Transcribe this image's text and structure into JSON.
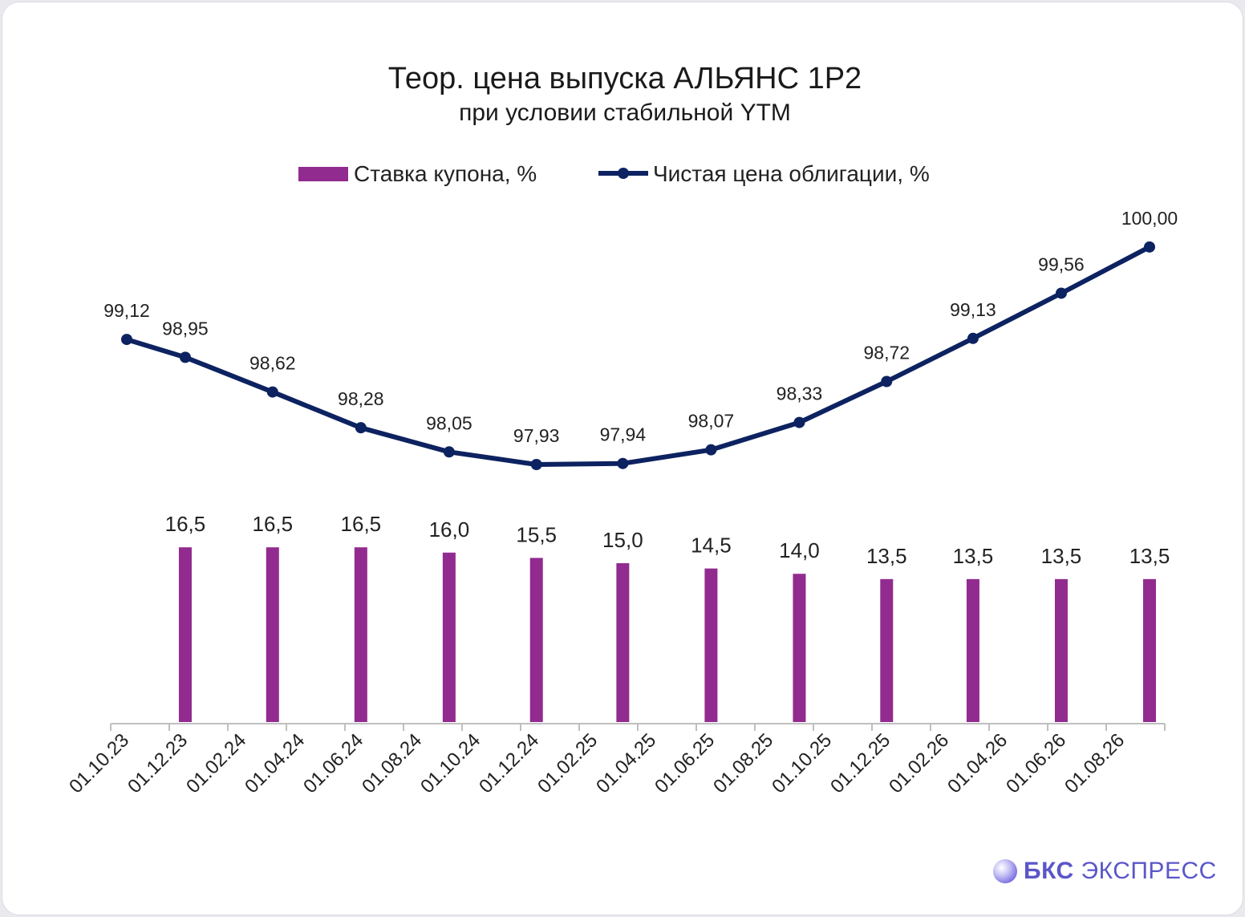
{
  "chart_data": {
    "type": "bar+line",
    "title": "Теор. цена выпуска АЛЬЯНС 1P2",
    "subtitle": "при условии стабильной YTM",
    "legend_position": "top",
    "grid": false,
    "x_tick_labels": [
      "01.10.23",
      "01.12.23",
      "01.02.24",
      "01.04.24",
      "01.06.24",
      "01.08.24",
      "01.10.24",
      "01.12.24",
      "01.02.25",
      "01.04.25",
      "01.06.25",
      "01.08.25",
      "01.10.25",
      "01.12.25",
      "01.02.26",
      "01.04.26",
      "01.06.26",
      "01.08.26"
    ],
    "series": [
      {
        "name": "Ставка купона, %",
        "type": "bar",
        "color": "#922b8f",
        "points": [
          {
            "x": "2023-12-01",
            "y": 16.5,
            "label": "16,5"
          },
          {
            "x": "2024-03-01",
            "y": 16.5,
            "label": "16,5"
          },
          {
            "x": "2024-06-01",
            "y": 16.5,
            "label": "16,5"
          },
          {
            "x": "2024-09-01",
            "y": 16.0,
            "label": "16,0"
          },
          {
            "x": "2024-12-01",
            "y": 15.5,
            "label": "15,5"
          },
          {
            "x": "2025-03-01",
            "y": 15.0,
            "label": "15,0"
          },
          {
            "x": "2025-06-01",
            "y": 14.5,
            "label": "14,5"
          },
          {
            "x": "2025-09-01",
            "y": 14.0,
            "label": "14,0"
          },
          {
            "x": "2025-12-01",
            "y": 13.5,
            "label": "13,5"
          },
          {
            "x": "2026-03-01",
            "y": 13.5,
            "label": "13,5"
          },
          {
            "x": "2026-06-01",
            "y": 13.5,
            "label": "13,5"
          },
          {
            "x": "2026-09-01",
            "y": 13.5,
            "label": "13,5"
          }
        ]
      },
      {
        "name": "Чистая цена облигации, %",
        "type": "line",
        "color": "#0d2260",
        "points": [
          {
            "x": "2023-10-01",
            "y": 99.12,
            "label": "99,12"
          },
          {
            "x": "2023-12-01",
            "y": 98.95,
            "label": "98,95"
          },
          {
            "x": "2024-03-01",
            "y": 98.62,
            "label": "98,62"
          },
          {
            "x": "2024-06-01",
            "y": 98.28,
            "label": "98,28"
          },
          {
            "x": "2024-09-01",
            "y": 98.05,
            "label": "98,05"
          },
          {
            "x": "2024-12-01",
            "y": 97.93,
            "label": "97,93"
          },
          {
            "x": "2025-03-01",
            "y": 97.94,
            "label": "97,94"
          },
          {
            "x": "2025-06-01",
            "y": 98.07,
            "label": "98,07"
          },
          {
            "x": "2025-09-01",
            "y": 98.33,
            "label": "98,33"
          },
          {
            "x": "2025-12-01",
            "y": 98.72,
            "label": "98,72"
          },
          {
            "x": "2026-03-01",
            "y": 99.13,
            "label": "99,13"
          },
          {
            "x": "2026-06-01",
            "y": 99.56,
            "label": "99,56"
          },
          {
            "x": "2026-09-01",
            "y": 100.0,
            "label": "100,00"
          }
        ]
      }
    ]
  },
  "brand": {
    "bold": "БКС",
    "rest": "ЭКСПРЕСС"
  }
}
